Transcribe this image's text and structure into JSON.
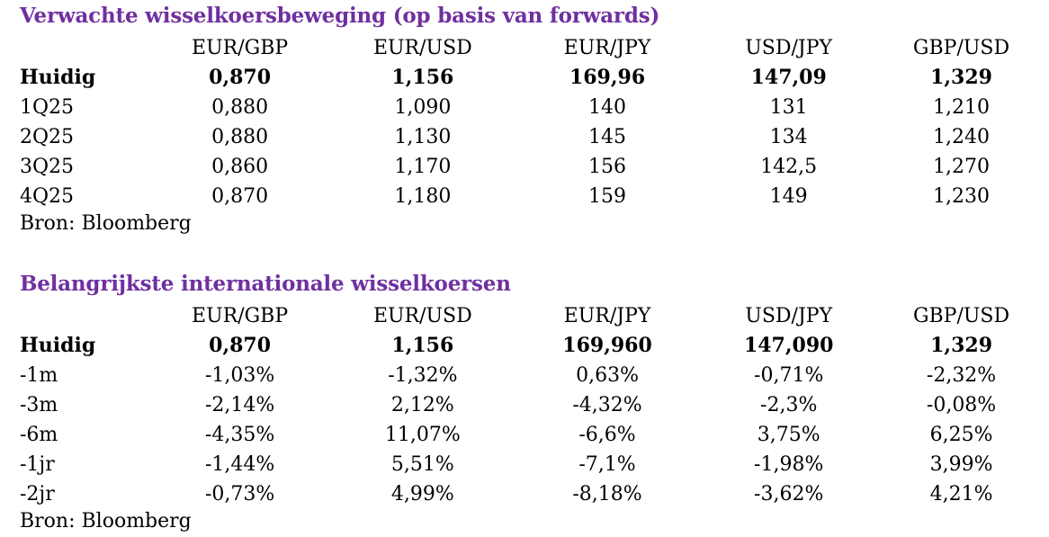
{
  "forecast": {
    "title": "Verwachte wisselkoersbeweging (op basis van forwards)",
    "columns": [
      "EUR/GBP",
      "EUR/USD",
      "EUR/JPY",
      "USD/JPY",
      "GBP/USD"
    ],
    "rows": [
      {
        "label": "Huidig",
        "values": [
          "0,870",
          "1,156",
          "169,96",
          "147,09",
          "1,329"
        ],
        "bold": true
      },
      {
        "label": "1Q25",
        "values": [
          "0,880",
          "1,090",
          "140",
          "131",
          "1,210"
        ]
      },
      {
        "label": "2Q25",
        "values": [
          "0,880",
          "1,130",
          "145",
          "134",
          "1,240"
        ]
      },
      {
        "label": "3Q25",
        "values": [
          "0,860",
          "1,170",
          "156",
          "142,5",
          "1,270"
        ]
      },
      {
        "label": "4Q25",
        "values": [
          "0,870",
          "1,180",
          "159",
          "149",
          "1,230"
        ]
      }
    ],
    "source": "Bron: Bloomberg"
  },
  "rates": {
    "title": "Belangrijkste internationale wisselkoersen",
    "columns": [
      "EUR/GBP",
      "EUR/USD",
      "EUR/JPY",
      "USD/JPY",
      "GBP/USD"
    ],
    "rows": [
      {
        "label": "Huidig",
        "values": [
          "0,870",
          "1,156",
          "169,960",
          "147,090",
          "1,329"
        ],
        "bold": true
      },
      {
        "label": "-1m",
        "values": [
          "-1,03%",
          "-1,32%",
          "0,63%",
          "-0,71%",
          "-2,32%"
        ]
      },
      {
        "label": "-3m",
        "values": [
          "-2,14%",
          "2,12%",
          "-4,32%",
          "-2,3%",
          "-0,08%"
        ]
      },
      {
        "label": "-6m",
        "values": [
          "-4,35%",
          "11,07%",
          "-6,6%",
          "3,75%",
          "6,25%"
        ]
      },
      {
        "label": "-1jr",
        "values": [
          "-1,44%",
          "5,51%",
          "-7,1%",
          "-1,98%",
          "3,99%"
        ]
      },
      {
        "label": "-2jr",
        "values": [
          "-0,73%",
          "4,99%",
          "-8,18%",
          "-3,62%",
          "4,21%"
        ]
      }
    ],
    "source": "Bron: Bloomberg"
  },
  "colors": {
    "title": "#7030a0",
    "text": "#000000",
    "background": "#ffffff"
  }
}
